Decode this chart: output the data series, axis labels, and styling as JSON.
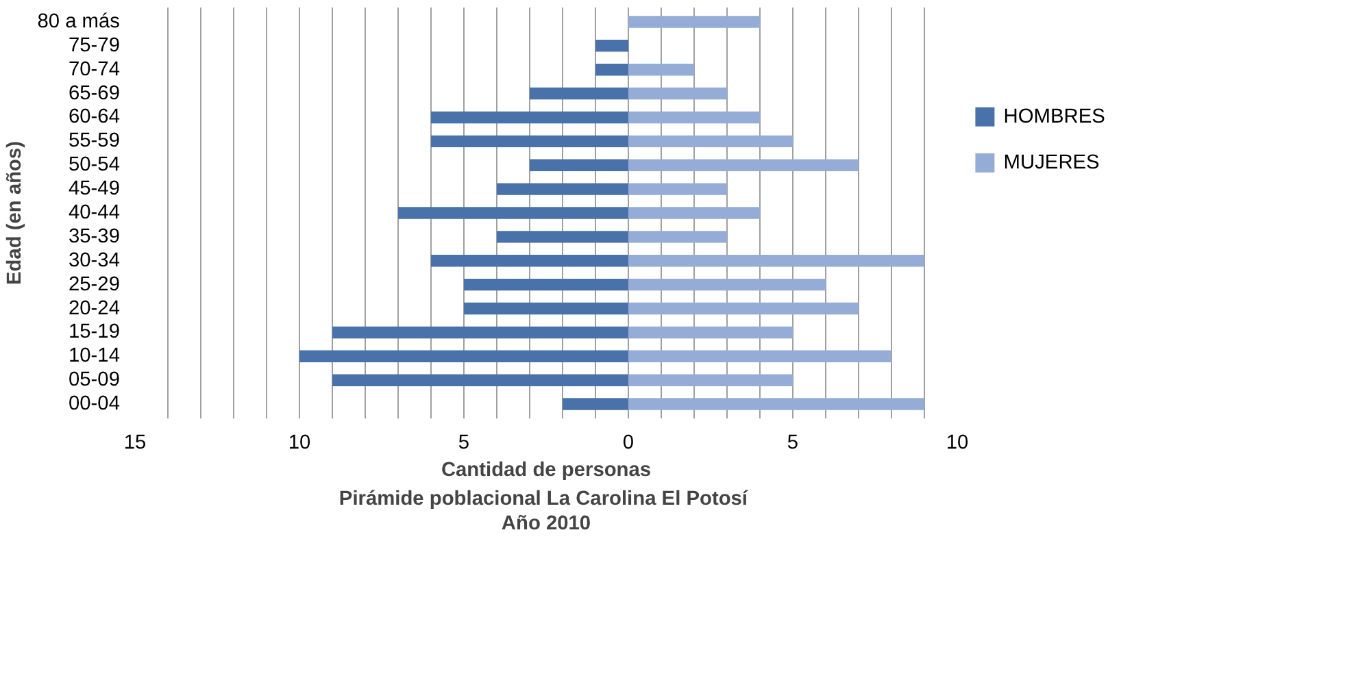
{
  "chart_data": {
    "type": "bar",
    "orientation": "horizontal",
    "title": "Pirámide poblacional  La Carolina El Potosí",
    "subtitle": "Año 2010",
    "xlabel": "Cantidad de personas",
    "ylabel": "Edad (en años)",
    "categories": [
      "80 a más",
      "75-79",
      "70-74",
      "65-69",
      "60-64",
      "55-59",
      "50-54",
      "45-49",
      "40-44",
      "35-39",
      "30-34",
      "25-29",
      "20-24",
      "15-19",
      "10-14",
      "05-09",
      "00-04"
    ],
    "series": [
      {
        "name": "HOMBRES",
        "color": "#4a72aa",
        "values": [
          0,
          -1,
          -1,
          -3,
          -6,
          -6,
          -3,
          -4,
          -7,
          -4,
          -6,
          -5,
          -5,
          -9,
          -10,
          -9,
          -2
        ]
      },
      {
        "name": "MUJERES",
        "color": "#95acd6",
        "values": [
          4,
          0,
          2,
          3,
          4,
          5,
          7,
          3,
          4,
          3,
          9,
          6,
          7,
          5,
          8,
          5,
          9
        ]
      }
    ],
    "xlim": [
      -15,
      10
    ],
    "xticks": [
      {
        "value": -15,
        "label": "15"
      },
      {
        "value": -14,
        "label": null
      },
      {
        "value": -13,
        "label": null
      },
      {
        "value": -12,
        "label": null
      },
      {
        "value": -11,
        "label": null
      },
      {
        "value": -10,
        "label": "10"
      },
      {
        "value": -9,
        "label": null
      },
      {
        "value": -8,
        "label": null
      },
      {
        "value": -7,
        "label": null
      },
      {
        "value": -6,
        "label": null
      },
      {
        "value": -5,
        "label": "5"
      },
      {
        "value": -4,
        "label": null
      },
      {
        "value": -3,
        "label": null
      },
      {
        "value": -2,
        "label": null
      },
      {
        "value": -1,
        "label": null
      },
      0,
      {
        "value": 1,
        "label": null
      },
      {
        "value": 2,
        "label": null
      },
      {
        "value": 3,
        "label": null
      },
      {
        "value": 4,
        "label": null
      },
      5,
      {
        "value": 6,
        "label": null
      },
      {
        "value": 7,
        "label": null
      },
      {
        "value": 8,
        "label": null
      },
      {
        "value": 9,
        "label": null
      },
      10
    ],
    "grid": "x",
    "legend": "right",
    "stacked": true
  }
}
